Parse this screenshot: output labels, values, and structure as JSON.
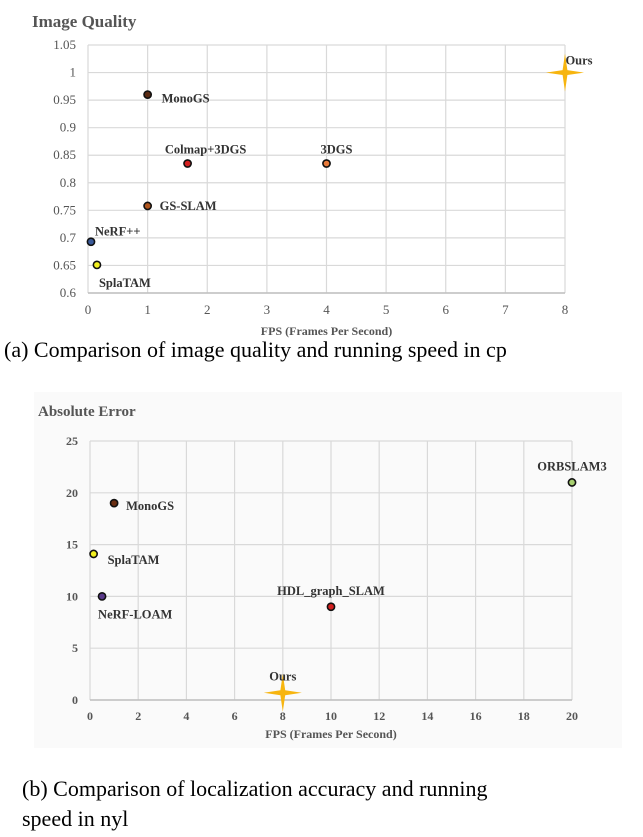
{
  "chart_data": [
    {
      "type": "scatter",
      "title": "Image Quality",
      "xlabel": "FPS (Frames Per Second)",
      "ylabel": "Image Quality",
      "xlim": [
        0,
        8
      ],
      "ylim": [
        0.6,
        1.05
      ],
      "xticks": [
        "0",
        "1",
        "2",
        "3",
        "4",
        "5",
        "6",
        "7",
        "8"
      ],
      "yticks": [
        "0.6",
        "0.65",
        "0.7",
        "0.75",
        "0.8",
        "0.85",
        "0.9",
        "0.95",
        "1",
        "1.05"
      ],
      "grid": true,
      "points": [
        {
          "name": "MonoGS",
          "x": 1.0,
          "y": 0.96,
          "color": "#5a2a12",
          "marker": "circle"
        },
        {
          "name": "Colmap+3DGS",
          "x": 1.67,
          "y": 0.835,
          "color": "#d42020",
          "marker": "circle"
        },
        {
          "name": "3DGS",
          "x": 4.0,
          "y": 0.835,
          "color": "#e87a3a",
          "marker": "circle"
        },
        {
          "name": "GS-SLAM",
          "x": 1.0,
          "y": 0.758,
          "color": "#b0561e",
          "marker": "circle"
        },
        {
          "name": "NeRF++",
          "x": 0.05,
          "y": 0.693,
          "color": "#3a5a9a",
          "marker": "circle"
        },
        {
          "name": "SplaTAM",
          "x": 0.15,
          "y": 0.651,
          "color": "#f2f020",
          "marker": "circle"
        },
        {
          "name": "Ours",
          "x": 8.0,
          "y": 1.0,
          "color": "#f7b50f",
          "marker": "star"
        }
      ],
      "caption": "(a) Comparison of image quality and running speed in cp"
    },
    {
      "type": "scatter",
      "title": "Absolute Error",
      "xlabel": "FPS (Frames Per Second)",
      "ylabel": "Absolute Error",
      "xlim": [
        0,
        20
      ],
      "ylim": [
        0,
        25
      ],
      "xticks": [
        "0",
        "2",
        "4",
        "6",
        "8",
        "10",
        "12",
        "14",
        "16",
        "18",
        "20"
      ],
      "yticks": [
        "0",
        "5",
        "10",
        "15",
        "20",
        "25"
      ],
      "grid": true,
      "points": [
        {
          "name": "MonoGS",
          "x": 1.0,
          "y": 19.0,
          "color": "#6a2e12",
          "marker": "circle"
        },
        {
          "name": "SplaTAM",
          "x": 0.15,
          "y": 14.1,
          "color": "#f2f020",
          "marker": "circle"
        },
        {
          "name": "NeRF-LOAM",
          "x": 0.5,
          "y": 10.0,
          "color": "#5a3a8a",
          "marker": "circle"
        },
        {
          "name": "HDL_graph_SLAM",
          "x": 10.0,
          "y": 9.0,
          "color": "#d42020",
          "marker": "circle"
        },
        {
          "name": "ORBSLAM3",
          "x": 20.0,
          "y": 21.0,
          "color": "#a8d070",
          "marker": "circle"
        },
        {
          "name": "Ours",
          "x": 8.0,
          "y": 0.7,
          "color": "#f7b50f",
          "marker": "star"
        }
      ],
      "caption": "(b) Comparison of localization accuracy and running speed in nyl"
    }
  ],
  "captions": {
    "a": "(a) Comparison of image quality and running speed in cp",
    "b_line1": "(b) Comparison of localization accuracy and running",
    "b_line2": "speed in nyl"
  }
}
